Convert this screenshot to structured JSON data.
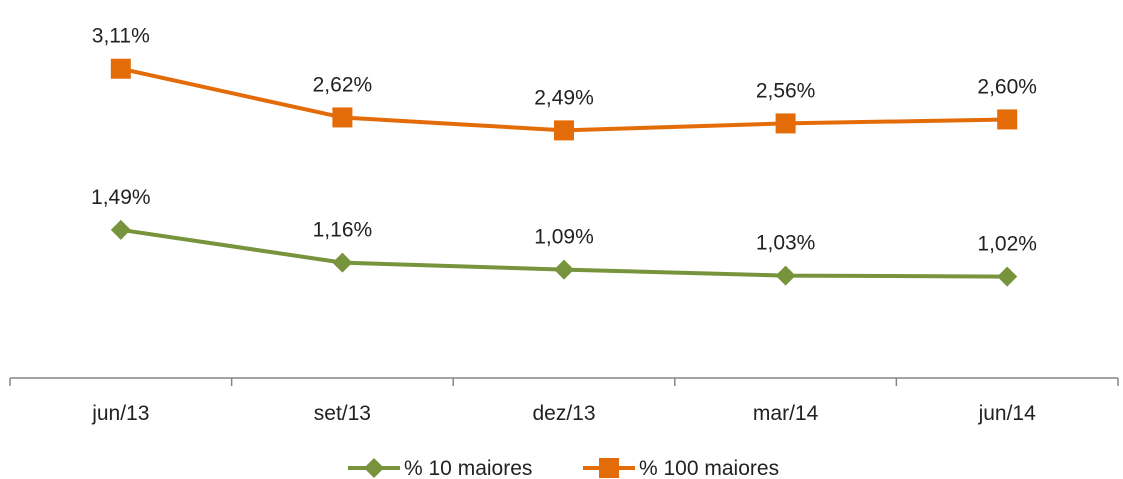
{
  "chart_data": {
    "type": "line",
    "categories": [
      "jun/13",
      "set/13",
      "dez/13",
      "mar/14",
      "jun/14"
    ],
    "series": [
      {
        "name": "% 10 maiores",
        "values": [
          1.49,
          1.16,
          1.09,
          1.03,
          1.02
        ],
        "labels": [
          "1,49%",
          "1,16%",
          "1,09%",
          "1,03%",
          "1,02%"
        ],
        "color": "#77933C",
        "marker": "diamond"
      },
      {
        "name": "% 100 maiores",
        "values": [
          3.11,
          2.62,
          2.49,
          2.56,
          2.6
        ],
        "labels": [
          "3,11%",
          "2,62%",
          "2,49%",
          "2,56%",
          "2,60%"
        ],
        "color": "#E36C09",
        "marker": "square"
      }
    ],
    "ylim": [
      0,
      3.6
    ],
    "grid": false,
    "legend_position": "bottom"
  }
}
